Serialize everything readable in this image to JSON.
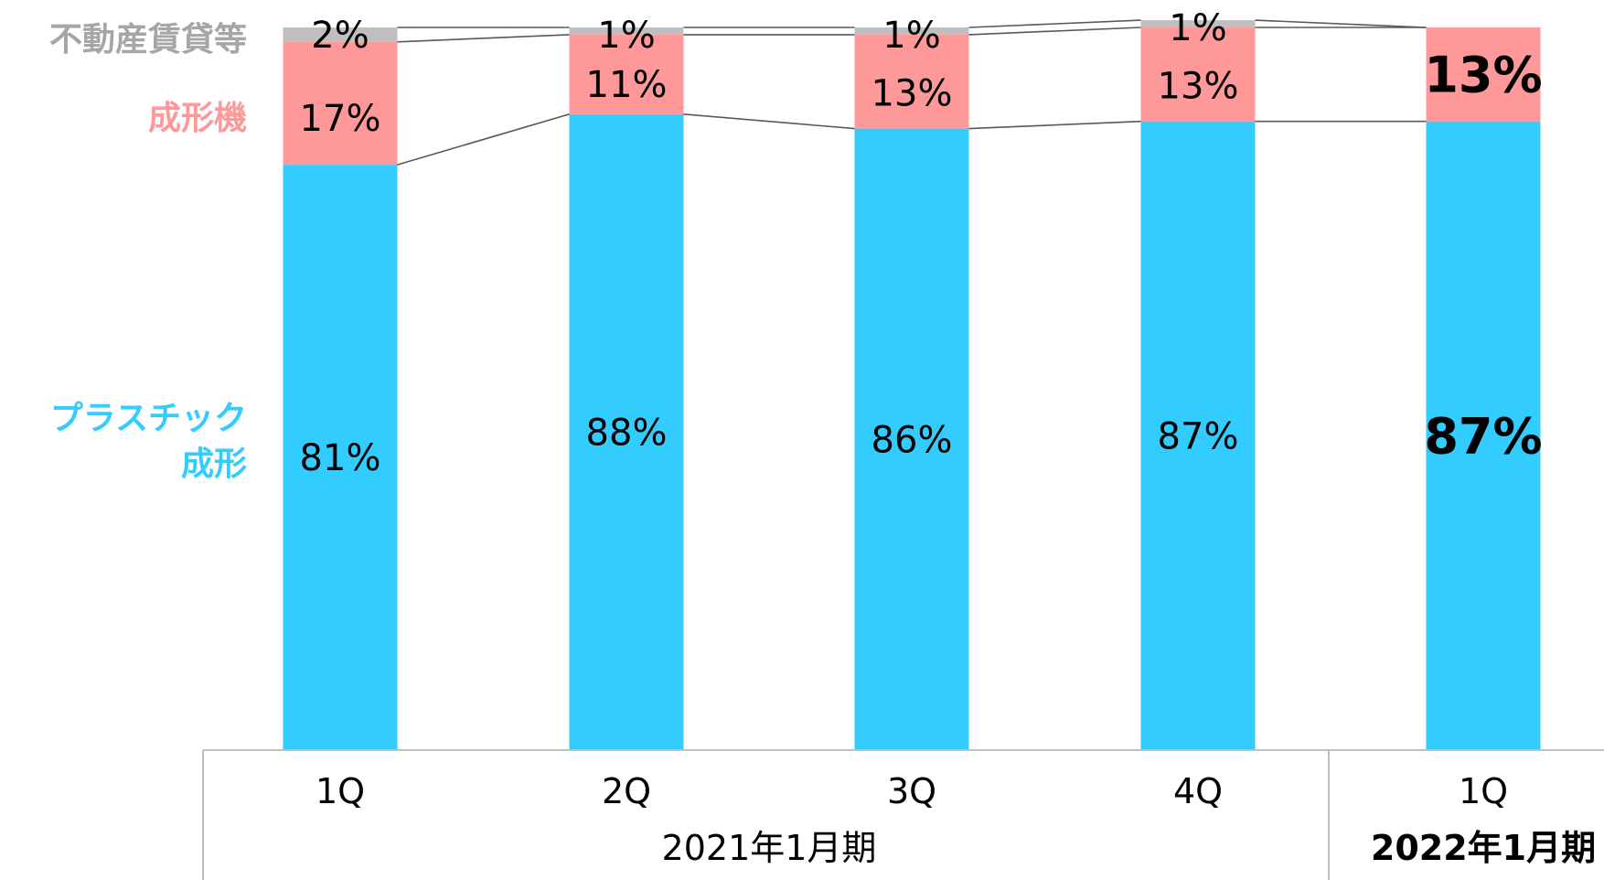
{
  "chart_data": {
    "type": "bar",
    "stacked": true,
    "percent": true,
    "title": "",
    "xlabel": "",
    "ylabel": "",
    "ylim": [
      0,
      100
    ],
    "grid": false,
    "legend_placement": "left",
    "categories": [
      "1Q",
      "2Q",
      "3Q",
      "4Q",
      "1Q"
    ],
    "category_groups": [
      {
        "label": "2021年1月期",
        "start": 0,
        "end": 3,
        "bold": false
      },
      {
        "label": "2022年1月期",
        "start": 4,
        "end": 4,
        "bold": true
      }
    ],
    "highlight_index": 4,
    "series": [
      {
        "name": "プラスチック成形",
        "legend_lines": [
          "プラスチック",
          "成形"
        ],
        "color": "#33CCFF",
        "legend_color": "#33CCFF",
        "values": [
          81,
          88,
          86,
          87,
          87
        ],
        "labels": [
          "81%",
          "88%",
          "86%",
          "87%",
          "87%"
        ]
      },
      {
        "name": "成形機",
        "legend_lines": [
          "成形機"
        ],
        "color": "#FF9999",
        "legend_color": "#FF9999",
        "values": [
          17,
          11,
          13,
          13,
          13
        ],
        "labels": [
          "17%",
          "11%",
          "13%",
          "13%",
          "13%"
        ]
      },
      {
        "name": "不動産賃貸等",
        "legend_lines": [
          "不動産賃貸等"
        ],
        "color": "#BFBFBF",
        "legend_color": "#A6A6A6",
        "values": [
          2,
          1,
          1,
          1,
          0
        ],
        "labels": [
          "2%",
          "1%",
          "1%",
          "1%",
          ""
        ]
      }
    ]
  }
}
